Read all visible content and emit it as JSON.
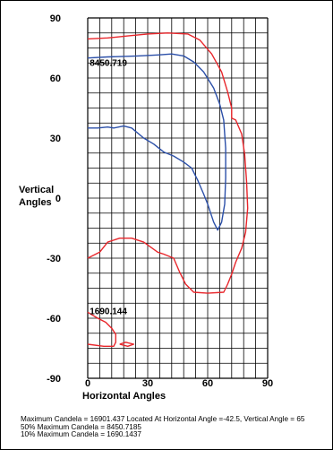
{
  "chart_data": {
    "type": "line",
    "xlabel": "Horizontal Angles",
    "ylabel": [
      "Vertical",
      "Angles"
    ],
    "xlim": [
      0,
      90
    ],
    "ylim": [
      -90,
      90
    ],
    "x_ticks": [
      "0",
      "30",
      "60",
      "90"
    ],
    "y_ticks": [
      "90",
      "60",
      "30",
      "0",
      "-30",
      "-60",
      "-90"
    ],
    "grid": true,
    "series": [
      {
        "name": "8450.719",
        "color": "#2b4fa8",
        "points": [
          [
            0,
            70
          ],
          [
            10,
            70.5
          ],
          [
            25,
            71
          ],
          [
            35,
            71.5
          ],
          [
            42,
            72
          ],
          [
            48,
            71
          ],
          [
            53,
            68
          ],
          [
            58,
            63
          ],
          [
            63,
            55
          ],
          [
            66,
            47
          ],
          [
            68,
            39
          ],
          [
            69,
            25
          ],
          [
            69,
            10
          ],
          [
            68.5,
            -3
          ],
          [
            67,
            -12
          ],
          [
            65,
            -16
          ],
          [
            63,
            -12
          ],
          [
            60,
            -3
          ],
          [
            58,
            2
          ],
          [
            55,
            9
          ],
          [
            52,
            15
          ],
          [
            48,
            18
          ],
          [
            43,
            21
          ],
          [
            38,
            23
          ],
          [
            33,
            27
          ],
          [
            28,
            30
          ],
          [
            22,
            35
          ],
          [
            18,
            36
          ],
          [
            13,
            35
          ],
          [
            10,
            35.5
          ],
          [
            5,
            35
          ],
          [
            0,
            35
          ]
        ]
      },
      {
        "name": "16901.437",
        "color": "#e8262b",
        "points": [
          [
            0,
            79.5
          ],
          [
            10,
            80
          ],
          [
            20,
            81
          ],
          [
            30,
            82
          ],
          [
            40,
            82.5
          ],
          [
            50,
            82
          ],
          [
            56,
            79
          ],
          [
            62,
            72
          ],
          [
            67,
            63
          ],
          [
            70,
            53
          ],
          [
            72,
            45
          ],
          [
            72,
            40
          ],
          [
            74,
            39
          ],
          [
            77,
            32
          ],
          [
            78.5,
            22
          ],
          [
            79.5,
            8
          ],
          [
            80,
            -5
          ],
          [
            79,
            -17
          ],
          [
            77,
            -25
          ],
          [
            74,
            -32
          ],
          [
            72,
            -38
          ],
          [
            70,
            -43
          ],
          [
            68,
            -47
          ],
          [
            60,
            -47.5
          ],
          [
            53,
            -47
          ],
          [
            49,
            -43
          ],
          [
            46,
            -37
          ],
          [
            43,
            -30
          ],
          [
            38,
            -28
          ],
          [
            35,
            -27
          ],
          [
            28,
            -22
          ],
          [
            22,
            -20
          ],
          [
            16,
            -20
          ],
          [
            10,
            -22
          ],
          [
            6,
            -27
          ],
          [
            0,
            -30
          ]
        ]
      },
      {
        "name": "1690.144",
        "color": "#e8262b",
        "points": [
          [
            0,
            -57
          ],
          [
            5,
            -60
          ],
          [
            9,
            -62
          ],
          [
            12,
            -65
          ],
          [
            14,
            -68
          ],
          [
            14,
            -72
          ],
          [
            13,
            -74
          ],
          [
            8,
            -74
          ],
          [
            0,
            -73
          ]
        ]
      },
      {
        "name": "",
        "color": "#e8262b",
        "points": [
          [
            16,
            -73
          ],
          [
            19,
            -72
          ],
          [
            23,
            -73
          ],
          [
            20,
            -74
          ],
          [
            16,
            -73
          ]
        ]
      }
    ],
    "contour_labels": [
      {
        "text": "8450.719",
        "x": 1,
        "y": 66
      },
      {
        "text": "1690.144",
        "x": 1,
        "y": -58
      }
    ]
  },
  "footer": {
    "line1": "Maximum Candela = 16901.437   Located At Horizontal Angle =-42.5, Vertical Angle = 65",
    "line2": "50% Maximum Candela = 8450.7185",
    "line3": "10% Maximum Candela = 1690.1437"
  }
}
